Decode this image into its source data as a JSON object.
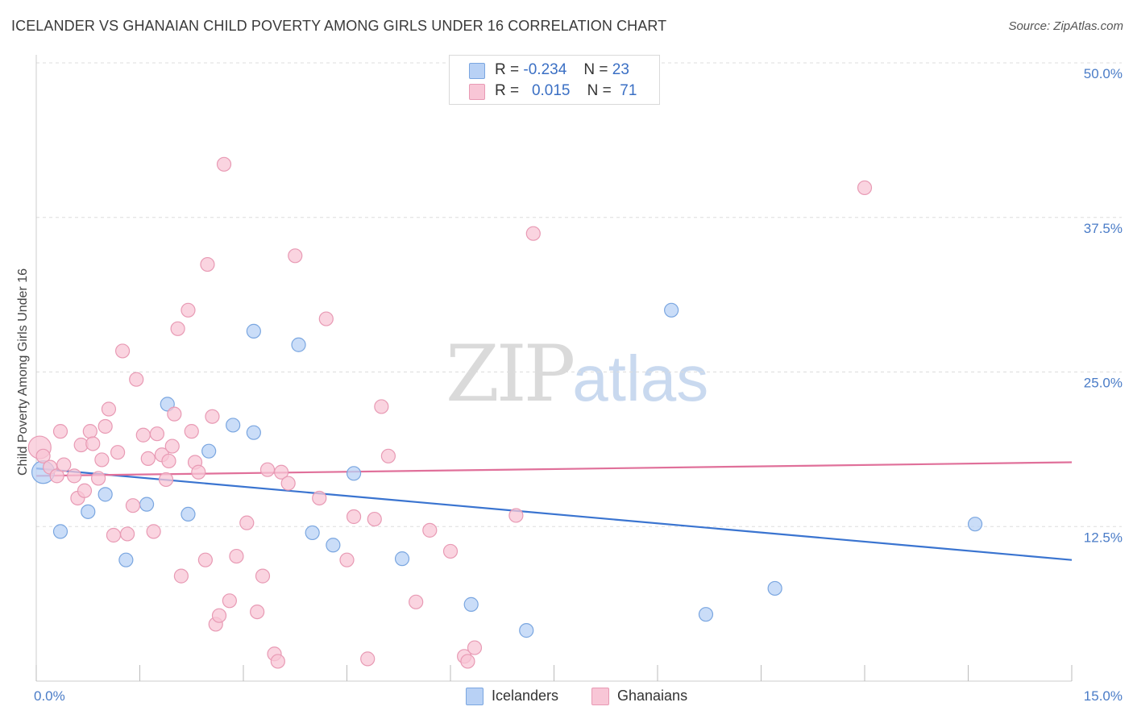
{
  "title": "ICELANDER VS GHANAIAN CHILD POVERTY AMONG GIRLS UNDER 16 CORRELATION CHART",
  "source": "Source: ZipAtlas.com",
  "watermark": {
    "zip": "ZIP",
    "atlas": "atlas"
  },
  "legend": {
    "r_label": "R =",
    "n_label": "N =",
    "rows": [
      {
        "r": "-0.234",
        "n": "23"
      },
      {
        "r": "0.015",
        "n": "71"
      }
    ]
  },
  "colors": {
    "icelanders_fill": "#b8d1f5",
    "icelanders_stroke": "#7aa6e0",
    "icelanders_line": "#3a74d0",
    "ghanaians_fill": "#f8c6d6",
    "ghanaians_stroke": "#e89ab4",
    "ghanaians_line": "#e0709a",
    "tick_text": "#4a7cc7",
    "grid": "#dddddd"
  },
  "chart_data": {
    "type": "scatter",
    "xlabel": "",
    "ylabel": "Child Poverty Among Girls Under 16",
    "xlim": [
      0,
      15
    ],
    "ylim": [
      0,
      50
    ],
    "x_tick_labels": [
      "0.0%",
      "15.0%"
    ],
    "y_ticks": [
      12.5,
      25.0,
      37.5,
      50.0
    ],
    "y_tick_labels": [
      "12.5%",
      "25.0%",
      "37.5%",
      "50.0%"
    ],
    "grid": "horizontal dashed",
    "legend_placement": "top-center",
    "series": [
      {
        "name": "Icelanders",
        "trend": {
          "x": [
            0,
            15
          ],
          "y": [
            17.2,
            9.8
          ]
        },
        "points": [
          {
            "x": 0.1,
            "y": 16.9,
            "big": true
          },
          {
            "x": 0.35,
            "y": 12.1
          },
          {
            "x": 0.75,
            "y": 13.7
          },
          {
            "x": 1.0,
            "y": 15.1
          },
          {
            "x": 1.3,
            "y": 9.8
          },
          {
            "x": 1.6,
            "y": 14.3
          },
          {
            "x": 1.9,
            "y": 22.4
          },
          {
            "x": 2.2,
            "y": 13.5
          },
          {
            "x": 2.5,
            "y": 18.6
          },
          {
            "x": 2.85,
            "y": 20.7
          },
          {
            "x": 3.15,
            "y": 28.3
          },
          {
            "x": 3.15,
            "y": 20.1
          },
          {
            "x": 3.8,
            "y": 27.2
          },
          {
            "x": 4.0,
            "y": 12.0
          },
          {
            "x": 4.3,
            "y": 11.0
          },
          {
            "x": 4.6,
            "y": 16.8
          },
          {
            "x": 5.3,
            "y": 9.9
          },
          {
            "x": 6.3,
            "y": 6.2
          },
          {
            "x": 7.1,
            "y": 4.1
          },
          {
            "x": 9.2,
            "y": 30.0
          },
          {
            "x": 9.7,
            "y": 5.4
          },
          {
            "x": 10.7,
            "y": 7.5
          },
          {
            "x": 13.6,
            "y": 12.7
          }
        ]
      },
      {
        "name": "Ghanaians",
        "trend": {
          "x": [
            0,
            15
          ],
          "y": [
            16.6,
            17.7
          ]
        },
        "points": [
          {
            "x": 0.05,
            "y": 18.9,
            "big": true
          },
          {
            "x": 0.1,
            "y": 18.2
          },
          {
            "x": 0.2,
            "y": 17.3
          },
          {
            "x": 0.3,
            "y": 16.6
          },
          {
            "x": 0.35,
            "y": 20.2
          },
          {
            "x": 0.4,
            "y": 17.5
          },
          {
            "x": 0.55,
            "y": 16.6
          },
          {
            "x": 0.6,
            "y": 14.8
          },
          {
            "x": 0.65,
            "y": 19.1
          },
          {
            "x": 0.7,
            "y": 15.4
          },
          {
            "x": 0.78,
            "y": 20.2
          },
          {
            "x": 0.82,
            "y": 19.2
          },
          {
            "x": 0.9,
            "y": 16.4
          },
          {
            "x": 0.95,
            "y": 17.9
          },
          {
            "x": 1.0,
            "y": 20.6
          },
          {
            "x": 1.05,
            "y": 22.0
          },
          {
            "x": 1.12,
            "y": 11.8
          },
          {
            "x": 1.18,
            "y": 18.5
          },
          {
            "x": 1.25,
            "y": 26.7
          },
          {
            "x": 1.32,
            "y": 11.9
          },
          {
            "x": 1.4,
            "y": 14.2
          },
          {
            "x": 1.45,
            "y": 24.4
          },
          {
            "x": 1.55,
            "y": 19.9
          },
          {
            "x": 1.62,
            "y": 18.0
          },
          {
            "x": 1.7,
            "y": 12.1
          },
          {
            "x": 1.75,
            "y": 20.0
          },
          {
            "x": 1.82,
            "y": 18.3
          },
          {
            "x": 1.88,
            "y": 16.3
          },
          {
            "x": 1.92,
            "y": 17.8
          },
          {
            "x": 1.97,
            "y": 19.0
          },
          {
            "x": 2.0,
            "y": 21.6
          },
          {
            "x": 2.05,
            "y": 28.5
          },
          {
            "x": 2.1,
            "y": 8.5
          },
          {
            "x": 2.2,
            "y": 30.0
          },
          {
            "x": 2.25,
            "y": 20.2
          },
          {
            "x": 2.3,
            "y": 17.7
          },
          {
            "x": 2.35,
            "y": 16.9
          },
          {
            "x": 2.45,
            "y": 9.8
          },
          {
            "x": 2.48,
            "y": 33.7
          },
          {
            "x": 2.55,
            "y": 21.4
          },
          {
            "x": 2.6,
            "y": 4.6
          },
          {
            "x": 2.65,
            "y": 5.3
          },
          {
            "x": 2.72,
            "y": 41.8
          },
          {
            "x": 2.8,
            "y": 6.5
          },
          {
            "x": 2.9,
            "y": 10.1
          },
          {
            "x": 3.05,
            "y": 12.8
          },
          {
            "x": 3.2,
            "y": 5.6
          },
          {
            "x": 3.28,
            "y": 8.5
          },
          {
            "x": 3.35,
            "y": 17.1
          },
          {
            "x": 3.45,
            "y": 2.2
          },
          {
            "x": 3.5,
            "y": 1.6
          },
          {
            "x": 3.55,
            "y": 16.9
          },
          {
            "x": 3.65,
            "y": 16.0
          },
          {
            "x": 3.75,
            "y": 34.4
          },
          {
            "x": 4.1,
            "y": 14.8
          },
          {
            "x": 4.2,
            "y": 29.3
          },
          {
            "x": 4.5,
            "y": 9.8
          },
          {
            "x": 4.6,
            "y": 13.3
          },
          {
            "x": 4.8,
            "y": 1.8
          },
          {
            "x": 4.9,
            "y": 13.1
          },
          {
            "x": 5.0,
            "y": 22.2
          },
          {
            "x": 5.1,
            "y": 18.2
          },
          {
            "x": 5.5,
            "y": 6.4
          },
          {
            "x": 5.7,
            "y": 12.2
          },
          {
            "x": 6.0,
            "y": 10.5
          },
          {
            "x": 6.2,
            "y": 2.0
          },
          {
            "x": 6.35,
            "y": 2.7
          },
          {
            "x": 6.95,
            "y": 13.4
          },
          {
            "x": 7.2,
            "y": 36.2
          },
          {
            "x": 12.0,
            "y": 39.9
          },
          {
            "x": 6.25,
            "y": 1.6
          }
        ]
      }
    ]
  }
}
